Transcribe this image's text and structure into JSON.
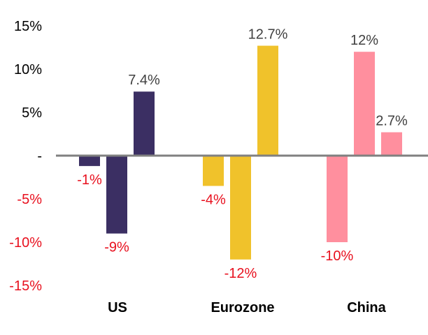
{
  "chart_data": {
    "type": "bar",
    "categories": [
      "US",
      "Eurozone",
      "China"
    ],
    "series_values": [
      [
        -1.2,
        -9,
        7.4
      ],
      [
        -3.5,
        -12,
        12.7
      ],
      [
        -10,
        12,
        2.7
      ]
    ],
    "data_labels": [
      [
        "-1%",
        "-9%",
        "7.4%"
      ],
      [
        "-4%",
        "-12%",
        "12.7%"
      ],
      [
        "-10%",
        "12%",
        "2.7%"
      ]
    ],
    "category_colors": [
      "#3b2f63",
      "#f0c22b",
      "#ff8f9e"
    ],
    "positive_label_color": "#404040",
    "negative_label_color": "#e8101e",
    "ylim": [
      -15,
      15
    ],
    "y_ticks": [
      {
        "value": 15,
        "label": "15%"
      },
      {
        "value": 10,
        "label": "10%"
      },
      {
        "value": 5,
        "label": "5%"
      },
      {
        "value": 0,
        "label": "-"
      },
      {
        "value": -5,
        "label": "-5%"
      },
      {
        "value": -10,
        "label": "-10%"
      },
      {
        "value": -15,
        "label": "-15%"
      }
    ],
    "grid": false,
    "legend": "none"
  }
}
